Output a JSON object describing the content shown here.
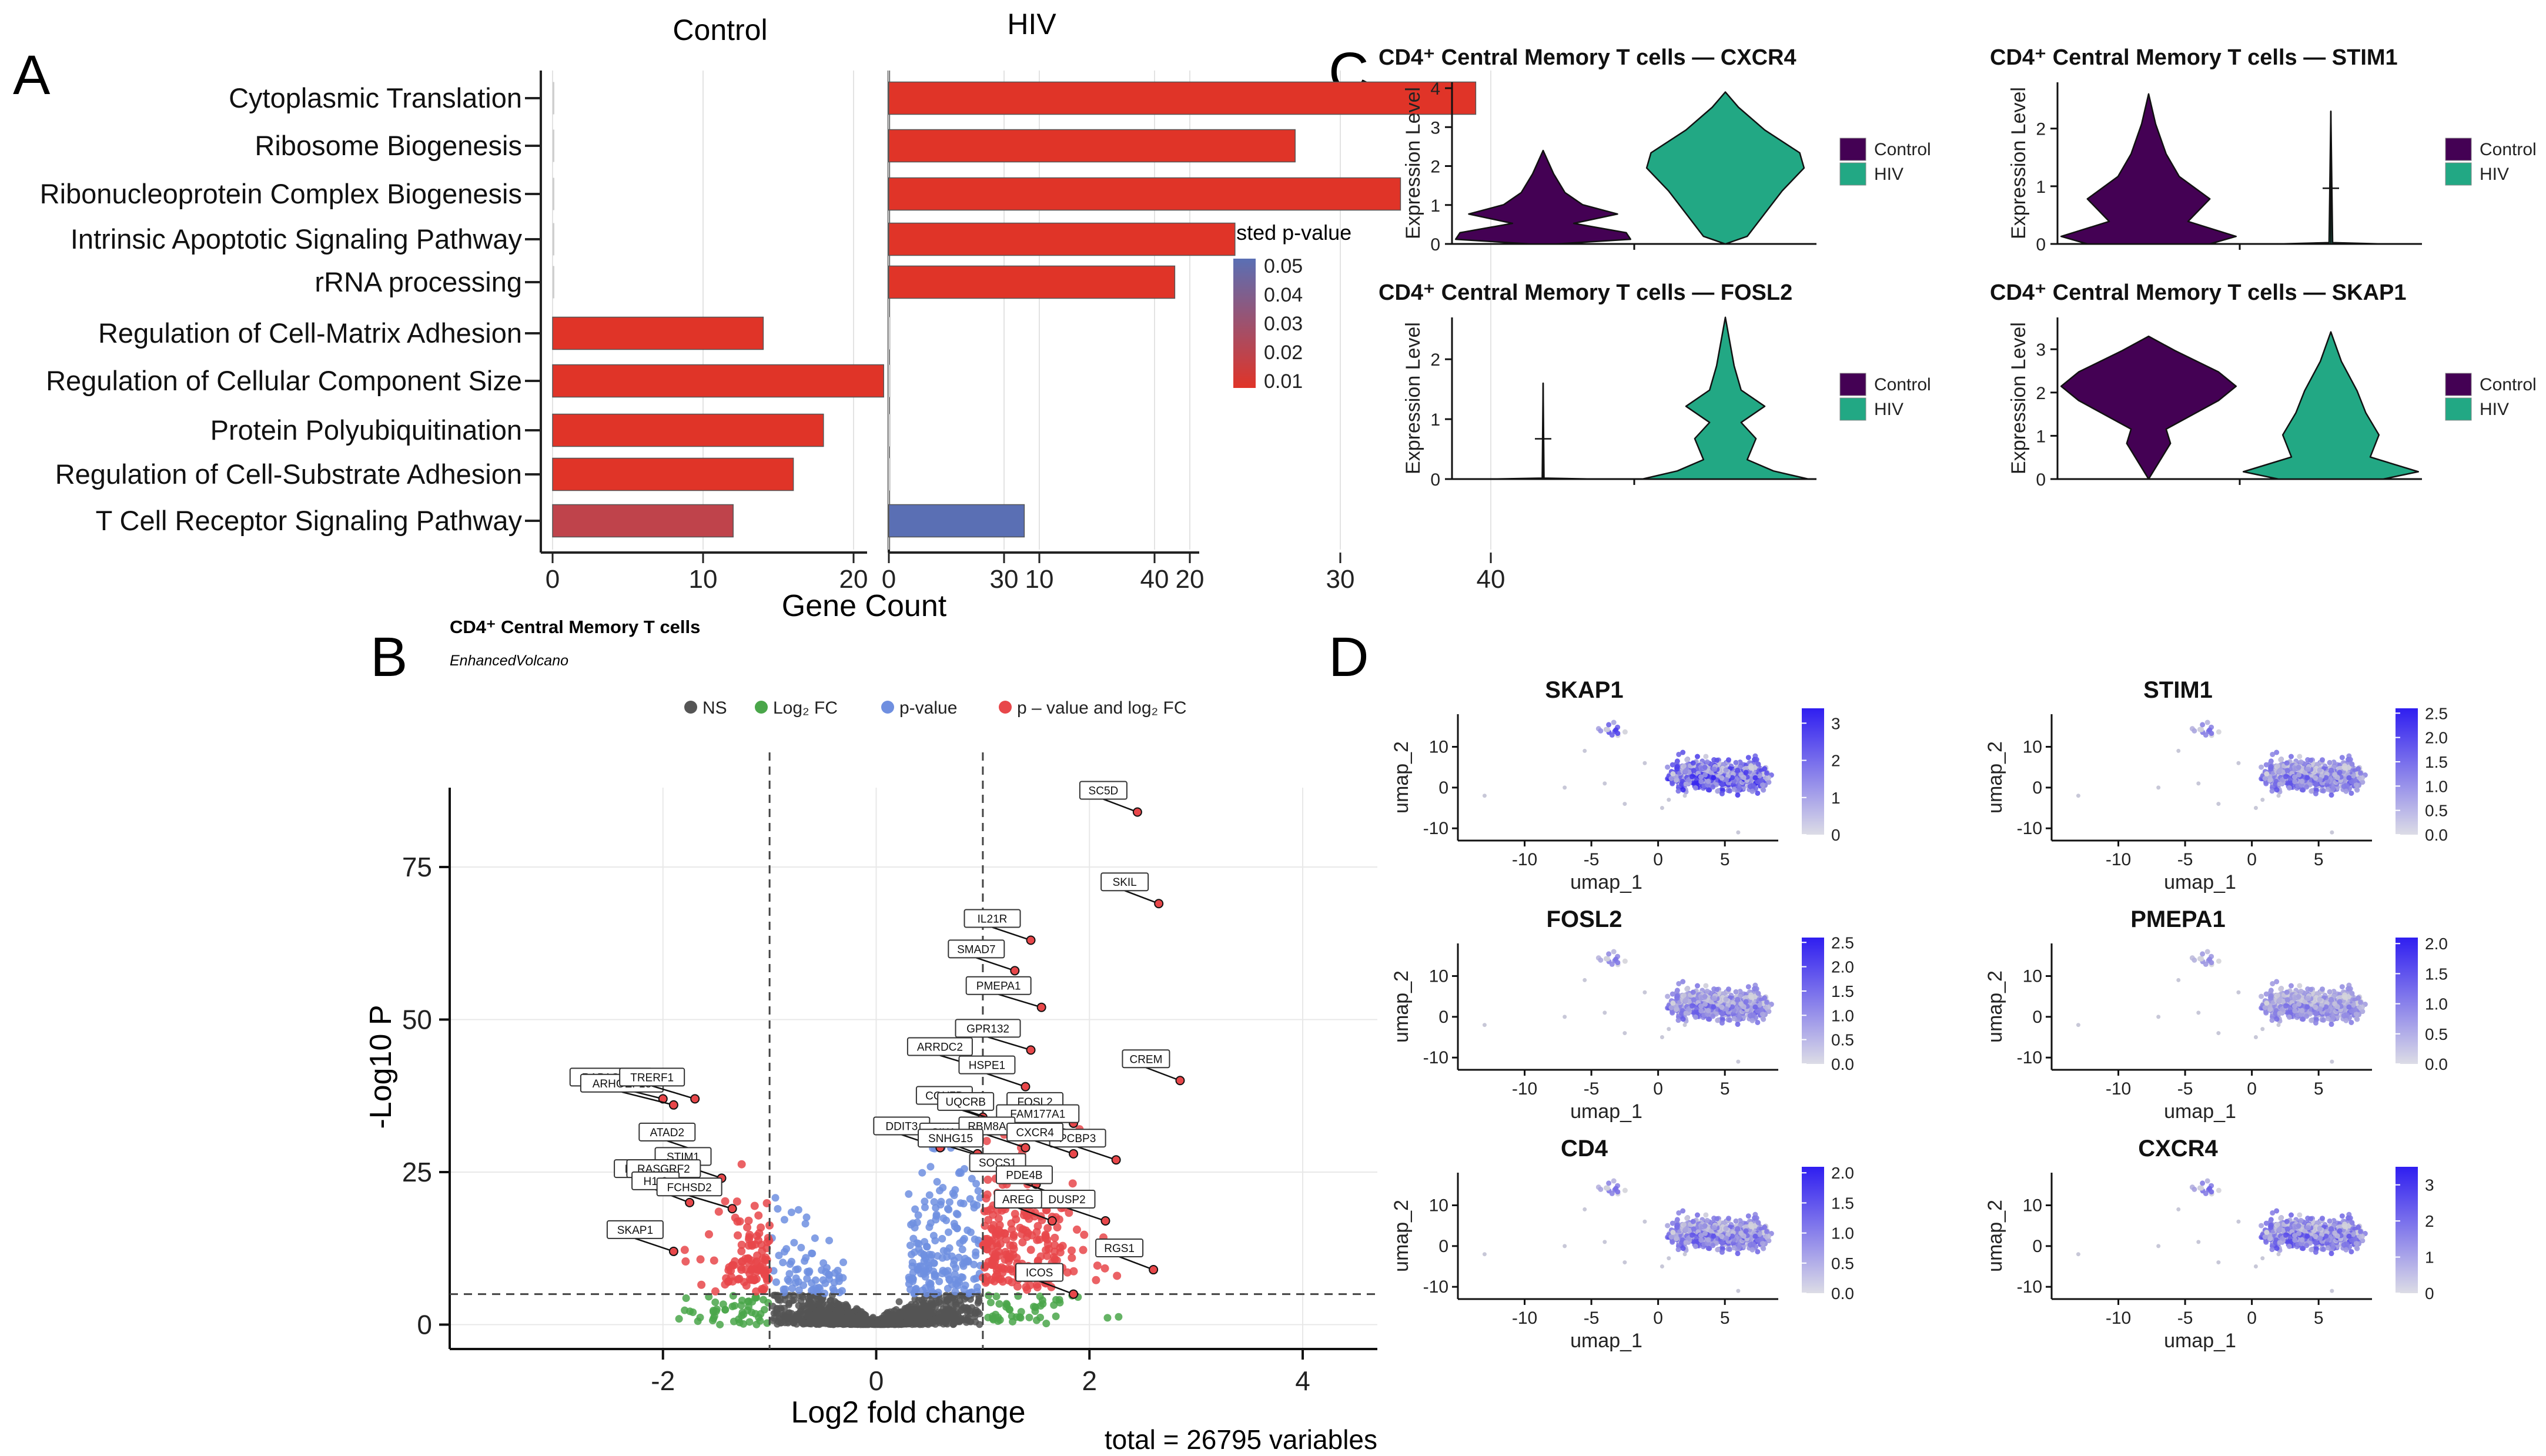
{
  "panel_letters": [
    "A",
    "B",
    "C",
    "D"
  ],
  "chart_data": [
    {
      "panel": "A",
      "type": "bar",
      "orientation": "horizontal",
      "group_titles": [
        "Control",
        "HIV"
      ],
      "categories": [
        "Cytoplasmic Translation",
        "Ribosome Biogenesis",
        "Ribonucleoprotein Complex Biogenesis",
        "Intrinsic Apoptotic Signaling Pathway",
        "rRNA processing",
        "Regulation of Cell-Matrix Adhesion",
        "Regulation of Cellular Component Size",
        "Protein Polyubiquitination",
        "Regulation of Cell-Substrate Adhesion",
        "T Cell Receptor Signaling Pathway"
      ],
      "series": [
        {
          "name": "Control",
          "values": [
            0,
            0,
            0,
            0,
            0,
            14,
            22,
            18,
            16,
            12
          ],
          "padj": [
            0.01,
            0.01,
            0.01,
            0.01,
            0.01,
            0.01,
            0.01,
            0.01,
            0.01,
            0.02
          ]
        },
        {
          "name": "HIV",
          "values": [
            39,
            27,
            34,
            23,
            19,
            0,
            0,
            0,
            0,
            9
          ],
          "padj": [
            0.01,
            0.01,
            0.01,
            0.01,
            0.01,
            0.01,
            0.01,
            0.01,
            0.01,
            0.05
          ]
        }
      ],
      "xlabel": "Gene Count",
      "xlim": [
        0,
        40
      ],
      "xticks": [
        0,
        10,
        20,
        30,
        40
      ],
      "legend": {
        "title": "adjusted p-value",
        "ticks": [
          "0.05",
          "0.04",
          "0.03",
          "0.02",
          "0.01"
        ],
        "colors": [
          "#5a6fb4",
          "#e03428"
        ],
        "placement": "right"
      }
    },
    {
      "panel": "B",
      "type": "scatter",
      "title": "CD4⁺ Central Memory T cells",
      "subtitle": "EnhancedVolcano",
      "xlabel": "Log2 fold change",
      "ylabel": "-Log10 P",
      "xlim": [
        -4,
        4.7
      ],
      "ylim": [
        -4,
        88
      ],
      "xticks": [
        -2,
        0,
        2,
        4
      ],
      "yticks": [
        0,
        25,
        50,
        75
      ],
      "fc_cutoff": 1,
      "p_cutoff_log10": 5,
      "caption": "total = 26795 variables",
      "legend": [
        {
          "name": "NS",
          "color": "#555555"
        },
        {
          "name": "Log₂ FC",
          "color": "#4aa64a"
        },
        {
          "name": "p-value",
          "color": "#6f8fe0"
        },
        {
          "name": "p – value and log₂ FC",
          "color": "#e8474a"
        }
      ],
      "labeled_genes": [
        {
          "gene": "SC5D",
          "x": 2.45,
          "y": 84
        },
        {
          "gene": "SKIL",
          "x": 2.65,
          "y": 69
        },
        {
          "gene": "IL21R",
          "x": 1.45,
          "y": 63
        },
        {
          "gene": "SMAD7",
          "x": 1.3,
          "y": 58
        },
        {
          "gene": "PMEPA1",
          "x": 1.55,
          "y": 52
        },
        {
          "gene": "GPR132",
          "x": 1.45,
          "y": 45
        },
        {
          "gene": "ARRDC2",
          "x": 1.0,
          "y": 42
        },
        {
          "gene": "HSPE1",
          "x": 1.4,
          "y": 39
        },
        {
          "gene": "CREM",
          "x": 2.85,
          "y": 40
        },
        {
          "gene": "COX7B",
          "x": 1.0,
          "y": 34
        },
        {
          "gene": "UQCRB",
          "x": 1.2,
          "y": 33
        },
        {
          "gene": "FOSL2",
          "x": 1.85,
          "y": 33
        },
        {
          "gene": "FAM177A1",
          "x": 2.0,
          "y": 31
        },
        {
          "gene": "DDIT3",
          "x": 0.6,
          "y": 29
        },
        {
          "gene": "SIK1",
          "x": 0.95,
          "y": 28
        },
        {
          "gene": "RBM8A",
          "x": 1.4,
          "y": 29
        },
        {
          "gene": "PCBP3",
          "x": 2.25,
          "y": 27
        },
        {
          "gene": "SNHG15",
          "x": 1.1,
          "y": 27
        },
        {
          "gene": "CXCR4",
          "x": 1.85,
          "y": 28
        },
        {
          "gene": "SOCS1",
          "x": 1.5,
          "y": 23
        },
        {
          "gene": "PDE4B",
          "x": 1.75,
          "y": 21
        },
        {
          "gene": "DUSP2",
          "x": 2.15,
          "y": 17
        },
        {
          "gene": "AREG",
          "x": 1.65,
          "y": 17
        },
        {
          "gene": "RGS1",
          "x": 2.6,
          "y": 9
        },
        {
          "gene": "ICOS",
          "x": 1.85,
          "y": 5
        },
        {
          "gene": "RAP1GAP2",
          "x": -2.0,
          "y": 37
        },
        {
          "gene": "ARHGEF18",
          "x": -1.9,
          "y": 36
        },
        {
          "gene": "TRERF1",
          "x": -1.7,
          "y": 37
        },
        {
          "gene": "ATAD2",
          "x": -1.6,
          "y": 28
        },
        {
          "gene": "STIM1",
          "x": -1.45,
          "y": 24
        },
        {
          "gene": "MAP2K6",
          "x": -1.75,
          "y": 22
        },
        {
          "gene": "RASGRF2",
          "x": -1.55,
          "y": 22
        },
        {
          "gene": "H1-3",
          "x": -1.75,
          "y": 20
        },
        {
          "gene": "FCHSD2",
          "x": -1.35,
          "y": 19
        },
        {
          "gene": "SKAP1",
          "x": -1.9,
          "y": 12
        }
      ]
    },
    {
      "panel": "C",
      "type": "violin",
      "ylabel": "Expression Level",
      "groups": [
        "Control",
        "HIV"
      ],
      "group_colors": [
        "#440154",
        "#22a884"
      ],
      "plots": [
        {
          "title": "CD4⁺ Central Memory T cells — CXCR4",
          "yticks": [
            0,
            1,
            2,
            3,
            4
          ],
          "ymax": 4,
          "control_max": 2.4,
          "hiv_max": 3.9
        },
        {
          "title": "CD4⁺ Central Memory T cells — STIM1",
          "yticks": [
            0,
            1,
            2
          ],
          "ymax": 2.7,
          "control_max": 2.6,
          "hiv_max": 2.3
        },
        {
          "title": "CD4⁺ Central Memory T cells — FOSL2",
          "yticks": [
            0,
            1,
            2
          ],
          "ymax": 2.6,
          "control_max": 1.6,
          "hiv_max": 2.7
        },
        {
          "title": "CD4⁺ Central Memory T cells — SKAP1",
          "yticks": [
            0,
            1,
            2,
            3
          ],
          "ymax": 3.6,
          "control_max": 3.3,
          "hiv_max": 3.4
        }
      ]
    },
    {
      "panel": "D",
      "type": "scatter",
      "subtype": "umap feature plots",
      "xlabel": "umap_1",
      "ylabel": "umap_2",
      "xticks": [
        -10,
        -5,
        0,
        5
      ],
      "yticks": [
        -10,
        0,
        10
      ],
      "xlim": [
        -15,
        9
      ],
      "ylim": [
        -13,
        18
      ],
      "plots": [
        {
          "gene": "SKAP1",
          "scale_ticks": [
            "3",
            "2",
            "1",
            "0"
          ],
          "max": 3.4,
          "intensity": 0.85
        },
        {
          "gene": "STIM1",
          "scale_ticks": [
            "2.5",
            "2.0",
            "1.5",
            "1.0",
            "0.5",
            "0.0"
          ],
          "max": 2.6,
          "intensity": 0.6
        },
        {
          "gene": "FOSL2",
          "scale_ticks": [
            "2.5",
            "2.0",
            "1.5",
            "1.0",
            "0.5",
            "0.0"
          ],
          "max": 2.6,
          "intensity": 0.55
        },
        {
          "gene": "PMEPA1",
          "scale_ticks": [
            "2.0",
            "1.5",
            "1.0",
            "0.5",
            "0.0"
          ],
          "max": 2.1,
          "intensity": 0.45
        },
        {
          "gene": "CD4",
          "scale_ticks": [
            "2.0",
            "1.5",
            "1.0",
            "0.5",
            "0.0"
          ],
          "max": 2.1,
          "intensity": 0.6
        },
        {
          "gene": "CXCR4",
          "scale_ticks": [
            "3",
            "2",
            "1",
            "0"
          ],
          "max": 3.5,
          "intensity": 0.65
        }
      ]
    }
  ]
}
